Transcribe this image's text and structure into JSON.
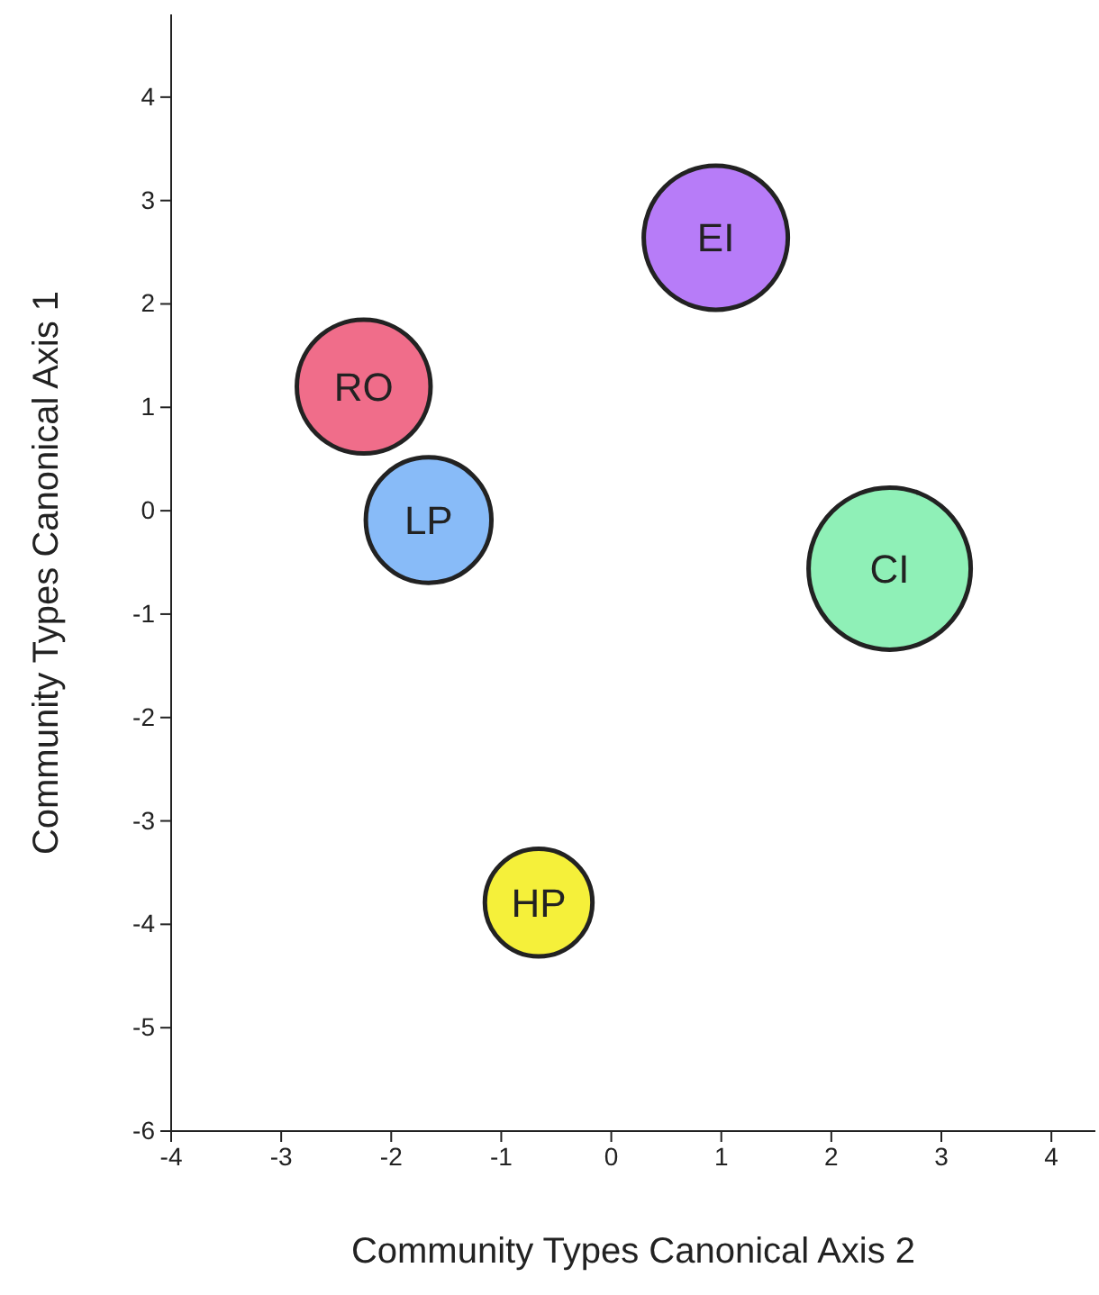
{
  "chart_data": {
    "type": "bubble",
    "xlabel": "Community Types Canonical Axis 2",
    "ylabel": "Community Types Canonical Axis 1",
    "xlim": [
      -4,
      4.4
    ],
    "ylim": [
      -6,
      4.8
    ],
    "xticks": [
      -4,
      -3,
      -2,
      -1,
      0,
      1,
      2,
      3,
      4
    ],
    "yticks": [
      -6,
      -5,
      -4,
      -3,
      -2,
      -1,
      0,
      1,
      2,
      3,
      4
    ],
    "grid": false,
    "legend": false,
    "series": [
      {
        "name": "EI",
        "color": "#b77cf8",
        "x": [
          0.95
        ],
        "values": [
          2.64
        ],
        "sizes": [
          0.79
        ]
      },
      {
        "name": "RO",
        "color": "#f06d8a",
        "x": [
          -2.25
        ],
        "values": [
          1.2
        ],
        "sizes": [
          0.68
        ]
      },
      {
        "name": "LP",
        "color": "#88bbf8",
        "x": [
          -1.66
        ],
        "values": [
          -0.09
        ],
        "sizes": [
          0.6
        ]
      },
      {
        "name": "CI",
        "color": "#8ff0b7",
        "x": [
          2.53
        ],
        "values": [
          -0.56
        ],
        "sizes": [
          1
        ]
      },
      {
        "name": "HP",
        "color": "#f5f03a",
        "x": [
          -0.66
        ],
        "values": [
          -3.79
        ],
        "sizes": [
          0.44
        ]
      }
    ]
  }
}
